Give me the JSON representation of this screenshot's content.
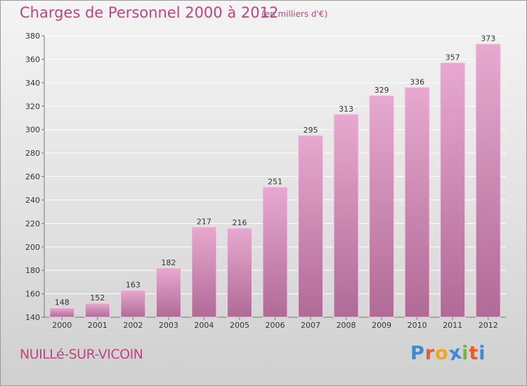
{
  "header": {
    "title": "Charges de Personnel 2000 à 2012",
    "subtitle": "(en milliers d'€)"
  },
  "footer": {
    "commune": "NUILLé-SUR-VICOIN",
    "brand": "Proxiti",
    "brand_letters": [
      "P",
      "r",
      "o",
      "x",
      "i",
      "t",
      "i"
    ],
    "brand_colors": [
      "#3a8ad6",
      "#e95b2b",
      "#f2a81d",
      "#3a8ad6",
      "#73b63b",
      "#e95b2b",
      "#3a8ad6"
    ]
  },
  "colors": {
    "accent": "#c0457e",
    "bar_top": "#e7a9cf",
    "bar_bottom": "#b06a96",
    "grid": "#ffffff",
    "axis": "#777777"
  },
  "chart_data": {
    "type": "bar",
    "title": "Charges de Personnel 2000 à 2012",
    "subtitle": "(en milliers d'€)",
    "categories": [
      "2000",
      "2001",
      "2002",
      "2003",
      "2004",
      "2005",
      "2006",
      "2007",
      "2008",
      "2009",
      "2010",
      "2011",
      "2012"
    ],
    "values": [
      148,
      152,
      163,
      182,
      217,
      216,
      251,
      295,
      313,
      329,
      336,
      357,
      373
    ],
    "ylim": [
      140,
      380
    ],
    "yticks": [
      140,
      160,
      180,
      200,
      220,
      240,
      260,
      280,
      300,
      320,
      340,
      360,
      380
    ],
    "grid": true,
    "xlabel": "",
    "ylabel": ""
  }
}
